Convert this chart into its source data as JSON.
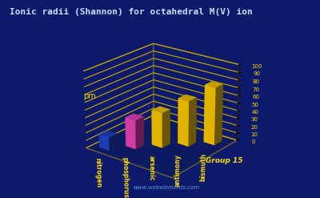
{
  "title": "Ionic radii (Shannon) for octahedral M(V) ion",
  "elements": [
    "nitrogen",
    "phosphorus",
    "arsenic",
    "antimony",
    "bismuth"
  ],
  "values": [
    17,
    38,
    46,
    60,
    76
  ],
  "colors": [
    "#2244cc",
    "#ee44bb",
    "#ffcc00",
    "#ffcc00",
    "#ffcc00"
  ],
  "floor_color": "#880000",
  "ylabel": "pm",
  "xlabel": "Group 15",
  "zlim": [
    0,
    100
  ],
  "zticks": [
    0,
    10,
    20,
    30,
    40,
    50,
    60,
    70,
    80,
    90,
    100
  ],
  "background_color": "#0d1a6b",
  "title_color": "#ccddff",
  "label_color": "#ffdd00",
  "grid_color": "#ccaa00",
  "watermark": "www.webelements.com",
  "watermark_color": "#6699dd",
  "elev": 22,
  "azim": -52
}
